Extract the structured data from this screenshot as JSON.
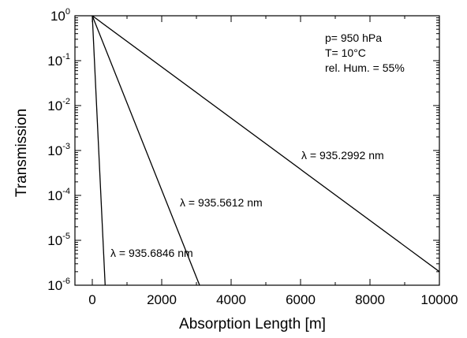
{
  "chart_data": {
    "type": "line",
    "title": "",
    "xlabel": "Absorption Length  [m]",
    "ylabel": "Transmission",
    "xlim": [
      -500,
      10000
    ],
    "ylim": [
      1e-06,
      1
    ],
    "yscale": "log",
    "grid": false,
    "x_ticks": [
      0,
      2000,
      4000,
      6000,
      8000,
      10000
    ],
    "x_tick_labels": [
      "0",
      "2000",
      "4000",
      "6000",
      "8000",
      "10000"
    ],
    "y_ticks": [
      1,
      0.1,
      0.01,
      0.001,
      0.0001,
      1e-05,
      1e-06
    ],
    "y_tick_labels": [
      {
        "base": "10",
        "exp": "0"
      },
      {
        "base": "10",
        "exp": "-1"
      },
      {
        "base": "10",
        "exp": "-2"
      },
      {
        "base": "10",
        "exp": "-3"
      },
      {
        "base": "10",
        "exp": "-4"
      },
      {
        "base": "10",
        "exp": "-5"
      },
      {
        "base": "10",
        "exp": "-6"
      }
    ],
    "annotations": [
      "p= 950 hPa",
      "T= 10°C",
      "rel. Hum. = 55%"
    ],
    "series": [
      {
        "name": "λ = 935.2992 nm",
        "x": [
          0,
          10000
        ],
        "y": [
          1,
          2e-06
        ]
      },
      {
        "name": "λ = 935.5612 nm",
        "x": [
          0,
          3090
        ],
        "y": [
          1,
          1e-06
        ]
      },
      {
        "name": "λ = 935.6846 nm",
        "x": [
          0,
          370
        ],
        "y": [
          1,
          1e-06
        ]
      }
    ]
  }
}
